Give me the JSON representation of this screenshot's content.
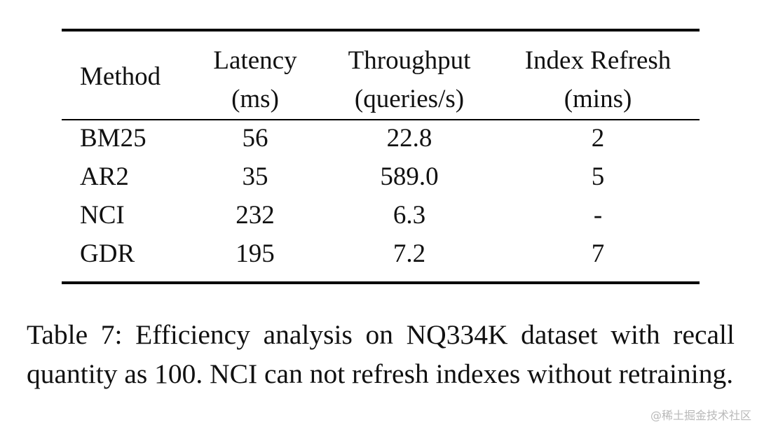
{
  "table": {
    "headers": {
      "method": "Method",
      "latency_line1": "Latency",
      "latency_line2": "(ms)",
      "throughput_line1": "Throughput",
      "throughput_line2": "(queries/s)",
      "refresh_line1": "Index Refresh",
      "refresh_line2": "(mins)"
    },
    "rows": [
      {
        "method": "BM25",
        "latency": "56",
        "throughput": "22.8",
        "refresh": "2"
      },
      {
        "method": "AR2",
        "latency": "35",
        "throughput": "589.0",
        "refresh": "5"
      },
      {
        "method": "NCI",
        "latency": "232",
        "throughput": "6.3",
        "refresh": "-"
      },
      {
        "method": "GDR",
        "latency": "195",
        "throughput": "7.2",
        "refresh": "7"
      }
    ]
  },
  "caption": "Table 7: Efficiency analysis on NQ334K dataset with recall quantity as 100.  NCI can not refresh indexes without retraining.",
  "watermark": "@稀土掘金技术社区"
}
